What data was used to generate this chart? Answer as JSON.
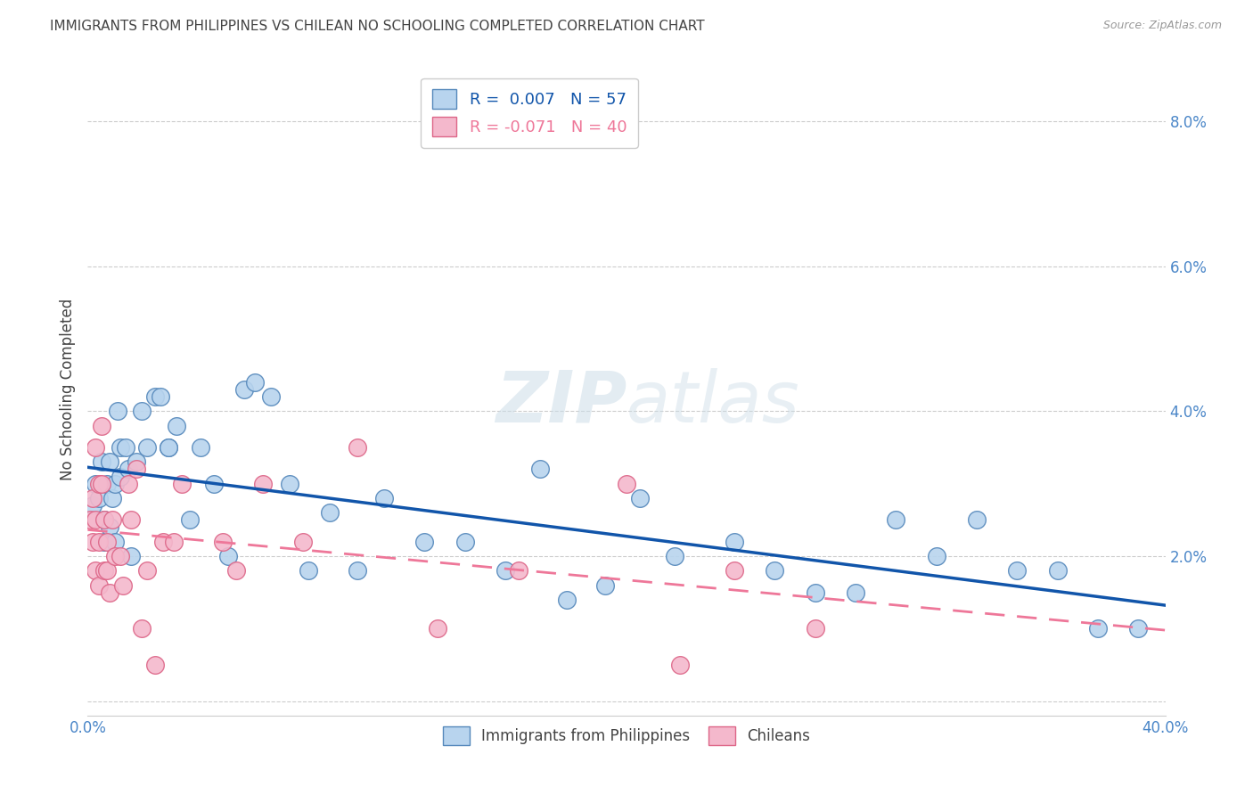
{
  "title": "IMMIGRANTS FROM PHILIPPINES VS CHILEAN NO SCHOOLING COMPLETED CORRELATION CHART",
  "source": "Source: ZipAtlas.com",
  "ylabel_label": "No Schooling Completed",
  "xlim": [
    0.0,
    0.4
  ],
  "ylim": [
    -0.002,
    0.088
  ],
  "xticks": [
    0.0,
    0.4
  ],
  "xticklabels": [
    "0.0%",
    "40.0%"
  ],
  "yticks": [
    0.0,
    0.02,
    0.04,
    0.06,
    0.08
  ],
  "yticklabels": [
    "",
    "2.0%",
    "4.0%",
    "6.0%",
    "8.0%"
  ],
  "philippines_color": "#b8d4ee",
  "chilean_color": "#f4b8cc",
  "philippines_edge_color": "#5588bb",
  "chilean_edge_color": "#dd6688",
  "trend_philippines_color": "#1155aa",
  "trend_chilean_color": "#ee7799",
  "R_philippines": 0.007,
  "N_philippines": 57,
  "R_chilean": -0.071,
  "N_chilean": 40,
  "philippines_x": [
    0.002,
    0.003,
    0.004,
    0.005,
    0.006,
    0.006,
    0.007,
    0.008,
    0.008,
    0.009,
    0.01,
    0.01,
    0.011,
    0.012,
    0.012,
    0.014,
    0.015,
    0.016,
    0.018,
    0.02,
    0.022,
    0.025,
    0.027,
    0.03,
    0.03,
    0.033,
    0.038,
    0.042,
    0.047,
    0.052,
    0.058,
    0.062,
    0.068,
    0.075,
    0.082,
    0.09,
    0.1,
    0.11,
    0.125,
    0.14,
    0.155,
    0.168,
    0.178,
    0.192,
    0.205,
    0.218,
    0.24,
    0.255,
    0.27,
    0.285,
    0.3,
    0.315,
    0.33,
    0.345,
    0.36,
    0.375,
    0.39
  ],
  "philippines_y": [
    0.027,
    0.03,
    0.028,
    0.033,
    0.022,
    0.025,
    0.03,
    0.024,
    0.033,
    0.028,
    0.022,
    0.03,
    0.04,
    0.035,
    0.031,
    0.035,
    0.032,
    0.02,
    0.033,
    0.04,
    0.035,
    0.042,
    0.042,
    0.035,
    0.035,
    0.038,
    0.025,
    0.035,
    0.03,
    0.02,
    0.043,
    0.044,
    0.042,
    0.03,
    0.018,
    0.026,
    0.018,
    0.028,
    0.022,
    0.022,
    0.018,
    0.032,
    0.014,
    0.016,
    0.028,
    0.02,
    0.022,
    0.018,
    0.015,
    0.015,
    0.025,
    0.02,
    0.025,
    0.018,
    0.018,
    0.01,
    0.01
  ],
  "chilean_x": [
    0.001,
    0.002,
    0.002,
    0.003,
    0.003,
    0.003,
    0.004,
    0.004,
    0.004,
    0.005,
    0.005,
    0.006,
    0.006,
    0.007,
    0.007,
    0.008,
    0.009,
    0.01,
    0.012,
    0.013,
    0.015,
    0.016,
    0.018,
    0.02,
    0.022,
    0.025,
    0.028,
    0.032,
    0.035,
    0.05,
    0.055,
    0.065,
    0.08,
    0.1,
    0.13,
    0.16,
    0.2,
    0.22,
    0.24,
    0.27
  ],
  "chilean_y": [
    0.025,
    0.028,
    0.022,
    0.035,
    0.025,
    0.018,
    0.03,
    0.022,
    0.016,
    0.038,
    0.03,
    0.025,
    0.018,
    0.022,
    0.018,
    0.015,
    0.025,
    0.02,
    0.02,
    0.016,
    0.03,
    0.025,
    0.032,
    0.01,
    0.018,
    0.005,
    0.022,
    0.022,
    0.03,
    0.022,
    0.018,
    0.03,
    0.022,
    0.035,
    0.01,
    0.018,
    0.03,
    0.005,
    0.018,
    0.01
  ],
  "background_color": "#ffffff",
  "grid_color": "#cccccc",
  "title_color": "#444444",
  "tick_label_color": "#4a86c8",
  "legend_border_color": "#cccccc",
  "watermark_color": "#ccdde8"
}
